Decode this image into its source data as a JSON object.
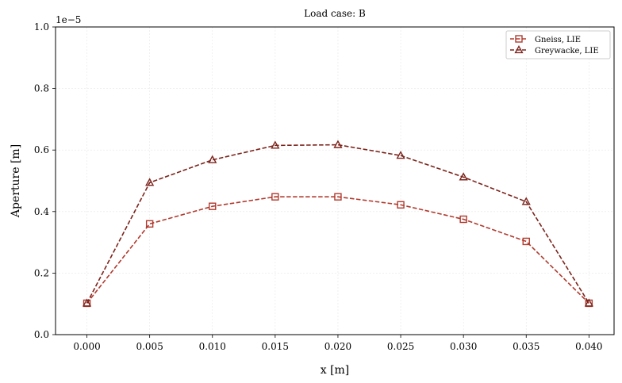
{
  "chart_data": {
    "type": "line",
    "title": "Load case: B",
    "xlabel": "x [m]",
    "ylabel": "Aperture [m]",
    "y_offset_label": "1e−5",
    "x": [
      0.0,
      0.005,
      0.01,
      0.015,
      0.02,
      0.025,
      0.03,
      0.035,
      0.04
    ],
    "x_tick_labels": [
      "0.000",
      "0.005",
      "0.010",
      "0.015",
      "0.020",
      "0.025",
      "0.030",
      "0.035",
      "0.040"
    ],
    "y_ticks": [
      0.0,
      0.2,
      0.4,
      0.6,
      0.8,
      1.0
    ],
    "y_tick_labels": [
      "0.0",
      "0.2",
      "0.4",
      "0.6",
      "0.8",
      "1.0"
    ],
    "xlim": [
      -0.0025,
      0.042
    ],
    "ylim": [
      0.0,
      1.0
    ],
    "grid": true,
    "legend_position": "top-right",
    "series": [
      {
        "name": "Gneiss, LIE",
        "marker": "square",
        "color": "#b03a2e",
        "values": [
          0.102,
          0.36,
          0.417,
          0.448,
          0.448,
          0.422,
          0.375,
          0.303,
          0.102
        ]
      },
      {
        "name": "Greywacke, LIE",
        "marker": "triangle",
        "color": "#7b241c",
        "values": [
          0.102,
          0.494,
          0.568,
          0.615,
          0.617,
          0.582,
          0.512,
          0.432,
          0.102
        ]
      }
    ]
  }
}
